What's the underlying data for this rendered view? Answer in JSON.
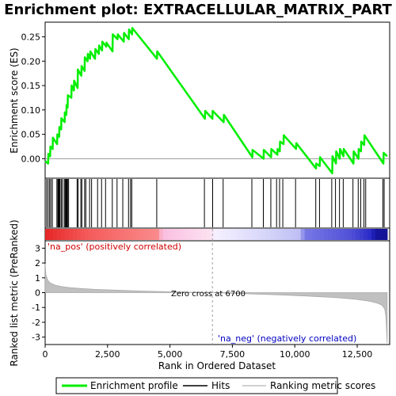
{
  "title": "Enrichment plot: EXTRACELLULAR_MATRIX_PART",
  "colors": {
    "enrichment_line": "#00ee00",
    "hits": "#000000",
    "metric_fill": "#c0c0c0",
    "zero_line": "#a0a0a0",
    "pos_label": "#d00000",
    "neg_label": "#0000c0"
  },
  "annotations": {
    "pos_label": "'na_pos' (positively correlated)",
    "neg_label": "'na_neg' (negatively correlated)",
    "zero_cross": "Zero cross at 6700"
  },
  "legend": {
    "items": [
      {
        "label": "Enrichment profile",
        "color": "#00ee00"
      },
      {
        "label": "Hits",
        "color": "#000000"
      },
      {
        "label": "Ranking metric scores",
        "color": "#c0c0c0"
      }
    ]
  },
  "chart_data": [
    {
      "type": "line",
      "ylabel": "Enrichment score (ES)",
      "xlim": [
        0,
        13800
      ],
      "ylim": [
        -0.04,
        0.28
      ],
      "yticks": [
        0.0,
        0.05,
        0.1,
        0.15,
        0.2,
        0.25
      ],
      "ytick_labels": [
        "0.00",
        "0.05",
        "0.10",
        "0.15",
        "0.20",
        "0.25"
      ],
      "series": [
        {
          "x": [
            0,
            120,
            130,
            200,
            210,
            300,
            310,
            480,
            490,
            560,
            570,
            640,
            650,
            780,
            790,
            850,
            860,
            900,
            910,
            1050,
            1060,
            1150,
            1160,
            1300,
            1310,
            1450,
            1460,
            1580,
            1590,
            1700,
            1710,
            1800,
            1810,
            2000,
            2010,
            2150,
            2160,
            2280,
            2290,
            2450,
            2460,
            2700,
            2710,
            2900,
            2910,
            3150,
            3160,
            3350,
            3360,
            3480,
            3490,
            4480,
            4490,
            6400,
            6410,
            6700,
            6710,
            7150,
            7160,
            8300,
            8310,
            8750,
            8760,
            9050,
            9060,
            9300,
            9310,
            9400,
            9410,
            9550,
            9560,
            10050,
            10060,
            10850,
            10860,
            11000,
            11010,
            11500,
            11510,
            11650,
            11660,
            11800,
            11810,
            11950,
            11960,
            12350,
            12360,
            12550,
            12560,
            12650,
            12660,
            12780,
            12790,
            13550,
            13560,
            13700
          ],
          "y": [
            -0.005,
            -0.01,
            0.01,
            0.005,
            0.025,
            0.02,
            0.043,
            0.03,
            0.05,
            0.045,
            0.065,
            0.06,
            0.083,
            0.075,
            0.095,
            0.09,
            0.11,
            0.105,
            0.13,
            0.125,
            0.15,
            0.14,
            0.16,
            0.145,
            0.183,
            0.17,
            0.19,
            0.18,
            0.208,
            0.2,
            0.215,
            0.205,
            0.22,
            0.205,
            0.225,
            0.215,
            0.232,
            0.222,
            0.24,
            0.23,
            0.238,
            0.22,
            0.255,
            0.245,
            0.255,
            0.24,
            0.258,
            0.245,
            0.265,
            0.255,
            0.268,
            0.205,
            0.22,
            0.082,
            0.098,
            0.082,
            0.098,
            0.075,
            0.09,
            0.003,
            0.018,
            0.0,
            0.018,
            0.003,
            0.02,
            0.008,
            0.02,
            0.015,
            0.035,
            0.03,
            0.048,
            0.02,
            0.032,
            -0.02,
            -0.01,
            -0.015,
            0.003,
            -0.03,
            0.005,
            -0.01,
            0.015,
            0.0,
            0.02,
            0.005,
            0.02,
            -0.01,
            0.015,
            0.0,
            0.02,
            0.015,
            0.035,
            0.028,
            0.048,
            -0.01,
            0.012,
            0.005
          ]
        }
      ]
    },
    {
      "type": "scatter",
      "name": "hits",
      "x": [
        60,
        120,
        180,
        230,
        290,
        470,
        510,
        540,
        560,
        590,
        640,
        680,
        760,
        800,
        830,
        850,
        870,
        900,
        940,
        1280,
        1320,
        1430,
        1470,
        1580,
        1630,
        1780,
        1860,
        2100,
        2260,
        2420,
        2690,
        2880,
        3110,
        3340,
        3420,
        3470,
        4470,
        6380,
        6710,
        7130,
        8280,
        8740,
        9040,
        9270,
        9390,
        9520,
        10030,
        10840,
        10990,
        11480,
        11630,
        11790,
        11940,
        12330,
        12540,
        12640,
        12770,
        12840,
        13530,
        13580
      ]
    },
    {
      "type": "area",
      "ylabel": "Ranked list metric (PreRanked)",
      "xlabel": "Rank in Ordered Dataset",
      "xlim": [
        0,
        13800
      ],
      "ylim": [
        -3.5,
        3.5
      ],
      "yticks": [
        -3,
        -2,
        -1,
        0,
        1,
        2,
        3
      ],
      "xticks": [
        0,
        2500,
        5000,
        7500,
        10000,
        12500
      ],
      "xtick_labels": [
        "0",
        "2,500",
        "5,000",
        "7,500",
        "10,000",
        "12,500"
      ],
      "zero_cross": 6700,
      "x": [
        0,
        30,
        100,
        200,
        400,
        700,
        1000,
        1500,
        2000,
        3000,
        4000,
        5000,
        6000,
        6700,
        7500,
        8500,
        9500,
        10500,
        11500,
        12000,
        12500,
        13000,
        13300,
        13500,
        13600,
        13650,
        13700
      ],
      "values": [
        1.95,
        1.2,
        0.85,
        0.65,
        0.5,
        0.4,
        0.33,
        0.27,
        0.22,
        0.16,
        0.1,
        0.06,
        0.02,
        0.0,
        -0.05,
        -0.1,
        -0.16,
        -0.23,
        -0.32,
        -0.38,
        -0.46,
        -0.58,
        -0.7,
        -0.85,
        -1.1,
        -1.6,
        -3.4
      ]
    }
  ]
}
